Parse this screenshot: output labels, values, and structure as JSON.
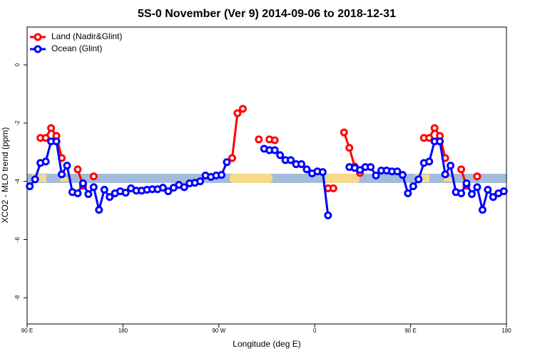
{
  "chart_data": {
    "type": "line",
    "title": "5S-0 November (Ver 9)   2014-09-06 to 2018-12-31",
    "x_label": "Longitude (deg E)",
    "y_label": "XCO2 - MLO trend (ppm)",
    "x": [
      92.5,
      97.5,
      102.5,
      107.5,
      112.5,
      117.5,
      122.5,
      127.5,
      132.5,
      137.5,
      142.5,
      147.5,
      152.5,
      157.5,
      162.5,
      167.5,
      172.5,
      177.5,
      182.5,
      187.5,
      192.5,
      197.5,
      202.5,
      207.5,
      212.5,
      217.5,
      222.5,
      227.5,
      232.5,
      237.5,
      242.5,
      247.5,
      252.5,
      257.5,
      262.5,
      267.5,
      272.5,
      277.5,
      282.5,
      287.5,
      292.5,
      297.5,
      302.5,
      307.5,
      312.5,
      317.5,
      322.5,
      327.5,
      332.5,
      337.5,
      342.5,
      347.5,
      352.5,
      357.5,
      362.5,
      367.5,
      372.5,
      377.5,
      382.5,
      387.5,
      392.5,
      397.5,
      402.5,
      407.5,
      412.5,
      417.5,
      422.5,
      427.5,
      432.5,
      437.5,
      442.5,
      447.5,
      452.5,
      457.5,
      462.5,
      467.5,
      472.5,
      477.5,
      482.5,
      487.5,
      492.5,
      497.5,
      502.5,
      507.5,
      512.5,
      517.5,
      522.5,
      527.5,
      532.5,
      537.5
    ],
    "series": [
      {
        "name": "Land (Nadir&Glint)",
        "color": "#ff0000",
        "values": [
          null,
          null,
          -2.51,
          -2.51,
          -2.17,
          -2.44,
          -3.2,
          null,
          null,
          -3.59,
          -4.15,
          null,
          -3.83,
          null,
          null,
          null,
          null,
          null,
          null,
          null,
          null,
          null,
          null,
          null,
          null,
          null,
          null,
          null,
          null,
          null,
          null,
          null,
          null,
          null,
          null,
          null,
          null,
          null,
          -3.2,
          -1.66,
          -1.51,
          null,
          null,
          -2.56,
          null,
          -2.56,
          -2.59,
          null,
          null,
          null,
          null,
          null,
          null,
          null,
          null,
          null,
          -4.24,
          -4.24,
          null,
          -2.32,
          -2.85,
          -3.49,
          -3.71,
          null,
          null,
          null,
          null,
          null,
          null,
          null,
          null,
          null,
          null,
          null,
          -2.51,
          -2.51,
          -2.17,
          -2.44,
          -3.2,
          null,
          null,
          -3.59,
          -4.15,
          null,
          -3.83,
          null,
          null,
          null,
          null,
          null
        ]
      },
      {
        "name": "Ocean (Glint)",
        "color": "#0000ff",
        "values": [
          -4.17,
          -3.93,
          -3.37,
          -3.32,
          -2.63,
          -2.63,
          -3.76,
          -3.46,
          -4.37,
          -4.41,
          -4.07,
          -4.44,
          -4.2,
          -4.98,
          -4.29,
          -4.54,
          -4.41,
          -4.34,
          -4.39,
          -4.24,
          -4.32,
          -4.32,
          -4.29,
          -4.27,
          -4.27,
          -4.22,
          -4.34,
          -4.22,
          -4.12,
          -4.2,
          -4.07,
          -4.05,
          -4,
          -3.8,
          -3.85,
          -3.8,
          -3.78,
          -3.34,
          null,
          null,
          null,
          null,
          null,
          null,
          -2.88,
          -2.93,
          -2.93,
          -3.1,
          -3.27,
          -3.27,
          -3.41,
          -3.41,
          -3.59,
          -3.73,
          -3.66,
          -3.68,
          -5.17,
          null,
          null,
          null,
          -3.51,
          -3.54,
          -3.61,
          -3.51,
          -3.51,
          -3.8,
          -3.63,
          -3.63,
          -3.66,
          -3.66,
          -3.78,
          -4.41,
          -4.17,
          -3.93,
          -3.37,
          -3.32,
          -2.63,
          -2.63,
          -3.76,
          -3.46,
          -4.37,
          -4.41,
          -4.07,
          -4.44,
          -4.2,
          -4.98,
          -4.29,
          -4.54,
          -4.41,
          -4.34
        ]
      }
    ],
    "xlim": [
      90,
      540
    ],
    "xticks": [
      {
        "value": 90,
        "label": "90 E"
      },
      {
        "value": 180,
        "label": "180"
      },
      {
        "value": 270,
        "label": "90 W"
      },
      {
        "value": 360,
        "label": "0"
      },
      {
        "value": 450,
        "label": "90 E"
      },
      {
        "value": 540,
        "label": "180"
      }
    ],
    "ylim": [
      -8.9,
      1.3
    ],
    "yticks": [
      0,
      -2,
      -4,
      -6,
      -8
    ],
    "legend": "top-left"
  }
}
